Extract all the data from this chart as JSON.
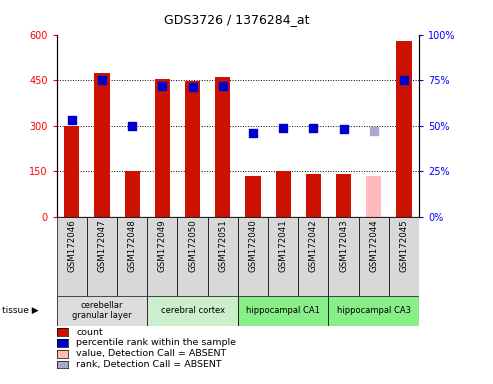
{
  "title": "GDS3726 / 1376284_at",
  "samples": [
    "GSM172046",
    "GSM172047",
    "GSM172048",
    "GSM172049",
    "GSM172050",
    "GSM172051",
    "GSM172040",
    "GSM172041",
    "GSM172042",
    "GSM172043",
    "GSM172044",
    "GSM172045"
  ],
  "count_values": [
    300,
    475,
    150,
    455,
    447,
    460,
    135,
    150,
    140,
    140,
    null,
    580
  ],
  "count_absent_values": [
    null,
    null,
    null,
    null,
    null,
    null,
    null,
    null,
    null,
    null,
    135,
    null
  ],
  "rank_values": [
    53,
    75,
    50,
    72,
    71,
    72,
    46,
    49,
    49,
    48,
    null,
    75
  ],
  "rank_absent_values": [
    null,
    null,
    null,
    null,
    null,
    null,
    null,
    null,
    null,
    null,
    47,
    null
  ],
  "bar_color": "#cc1100",
  "bar_absent_color": "#ffbbbb",
  "dot_color": "#0000cc",
  "dot_absent_color": "#aaaacc",
  "ylim_left": [
    0,
    600
  ],
  "ylim_right": [
    0,
    100
  ],
  "yticks_left": [
    0,
    150,
    300,
    450,
    600
  ],
  "yticks_right": [
    0,
    25,
    50,
    75,
    100
  ],
  "ytick_labels_left": [
    "0",
    "150",
    "300",
    "450",
    "600"
  ],
  "ytick_labels_right": [
    "0%",
    "25%",
    "50%",
    "75%",
    "100%"
  ],
  "tissue_groups": [
    {
      "label": "cerebellar\ngranular layer",
      "samples": [
        "GSM172046",
        "GSM172047",
        "GSM172048"
      ],
      "color": "#dddddd"
    },
    {
      "label": "cerebral cortex",
      "samples": [
        "GSM172049",
        "GSM172050",
        "GSM172051"
      ],
      "color": "#cceecc"
    },
    {
      "label": "hippocampal CA1",
      "samples": [
        "GSM172040",
        "GSM172041",
        "GSM172042"
      ],
      "color": "#88ee88"
    },
    {
      "label": "hippocampal CA3",
      "samples": [
        "GSM172043",
        "GSM172044",
        "GSM172045"
      ],
      "color": "#88ee88"
    }
  ],
  "legend_items": [
    {
      "label": "count",
      "color": "#cc1100"
    },
    {
      "label": "percentile rank within the sample",
      "color": "#0000cc"
    },
    {
      "label": "value, Detection Call = ABSENT",
      "color": "#ffbbbb"
    },
    {
      "label": "rank, Detection Call = ABSENT",
      "color": "#aaaacc"
    }
  ],
  "fig_width": 4.93,
  "fig_height": 3.84,
  "dpi": 100
}
